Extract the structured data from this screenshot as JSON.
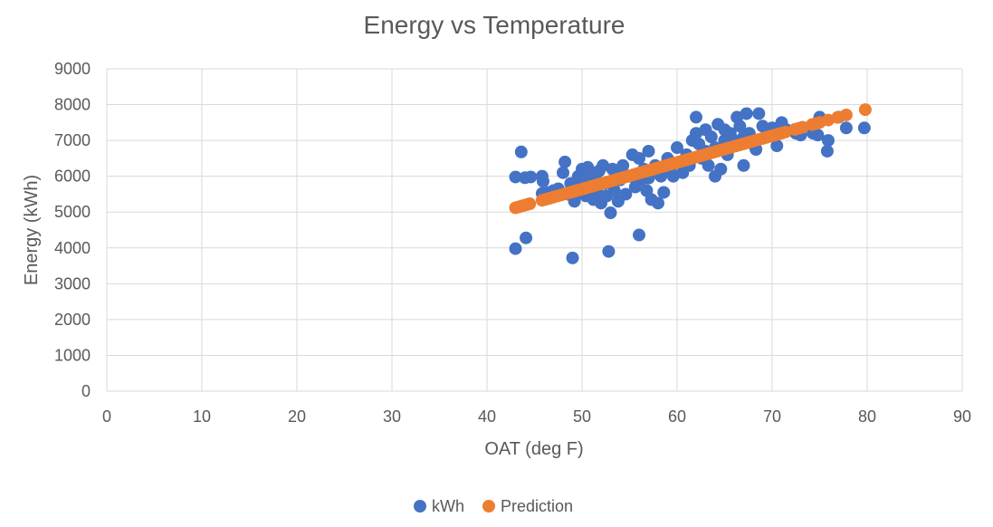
{
  "chart_data": {
    "type": "scatter",
    "title": "Energy vs Temperature",
    "xlabel": "OAT (deg F)",
    "ylabel": "Energy (kWh)",
    "xlim": [
      0,
      90
    ],
    "ylim": [
      0,
      9000
    ],
    "xticks": [
      0,
      10,
      20,
      30,
      40,
      50,
      60,
      70,
      80,
      90
    ],
    "yticks": [
      0,
      1000,
      2000,
      3000,
      4000,
      5000,
      6000,
      7000,
      8000,
      9000
    ],
    "grid": "vertical and horizontal",
    "legend_position": "bottom",
    "series": [
      {
        "name": "kWh",
        "color": "#4472c4",
        "points": [
          [
            43.0,
            3980
          ],
          [
            43.0,
            5980
          ],
          [
            43.6,
            6680
          ],
          [
            44.1,
            4280
          ],
          [
            44.0,
            5960
          ],
          [
            44.6,
            5980
          ],
          [
            45.8,
            6000
          ],
          [
            45.9,
            5860
          ],
          [
            45.8,
            5520
          ],
          [
            46.5,
            5550
          ],
          [
            47.0,
            5600
          ],
          [
            47.5,
            5650
          ],
          [
            48.0,
            6100
          ],
          [
            48.2,
            6400
          ],
          [
            48.5,
            5500
          ],
          [
            48.8,
            5800
          ],
          [
            49.0,
            3720
          ],
          [
            49.2,
            5300
          ],
          [
            49.4,
            5700
          ],
          [
            49.6,
            6000
          ],
          [
            49.8,
            5550
          ],
          [
            50.0,
            6200
          ],
          [
            50.2,
            5900
          ],
          [
            50.4,
            5450
          ],
          [
            50.6,
            6250
          ],
          [
            50.8,
            5650
          ],
          [
            51.0,
            6100
          ],
          [
            51.2,
            5350
          ],
          [
            51.4,
            6000
          ],
          [
            51.6,
            5550
          ],
          [
            51.8,
            6150
          ],
          [
            52.0,
            5250
          ],
          [
            52.2,
            6300
          ],
          [
            52.4,
            5800
          ],
          [
            52.6,
            5450
          ],
          [
            52.8,
            3900
          ],
          [
            53.0,
            4980
          ],
          [
            53.2,
            6200
          ],
          [
            53.4,
            5600
          ],
          [
            53.6,
            6100
          ],
          [
            53.8,
            5300
          ],
          [
            54.0,
            5900
          ],
          [
            54.3,
            6300
          ],
          [
            54.6,
            5500
          ],
          [
            55.0,
            6000
          ],
          [
            55.3,
            6600
          ],
          [
            55.6,
            5700
          ],
          [
            56.0,
            4360
          ],
          [
            56.0,
            6500
          ],
          [
            56.2,
            5900
          ],
          [
            56.5,
            6200
          ],
          [
            56.8,
            5600
          ],
          [
            57.0,
            6700
          ],
          [
            57.0,
            5950
          ],
          [
            57.3,
            5350
          ],
          [
            57.7,
            6300
          ],
          [
            58.0,
            5250
          ],
          [
            58.3,
            6000
          ],
          [
            58.6,
            5550
          ],
          [
            59.0,
            6500
          ],
          [
            59.3,
            6200
          ],
          [
            59.6,
            6000
          ],
          [
            60.0,
            6800
          ],
          [
            60.3,
            6400
          ],
          [
            60.6,
            6100
          ],
          [
            61.0,
            6600
          ],
          [
            61.3,
            6300
          ],
          [
            61.6,
            7000
          ],
          [
            62.0,
            7650
          ],
          [
            62.0,
            7200
          ],
          [
            62.3,
            6900
          ],
          [
            62.6,
            6500
          ],
          [
            63.0,
            6700
          ],
          [
            63.0,
            7300
          ],
          [
            63.3,
            6300
          ],
          [
            63.6,
            7100
          ],
          [
            64.0,
            6000
          ],
          [
            64.0,
            6800
          ],
          [
            64.3,
            7450
          ],
          [
            64.6,
            6200
          ],
          [
            65.0,
            7000
          ],
          [
            65.0,
            7300
          ],
          [
            65.3,
            6600
          ],
          [
            65.6,
            7200
          ],
          [
            66.0,
            7000
          ],
          [
            66.3,
            7650
          ],
          [
            66.6,
            7400
          ],
          [
            67.0,
            6300
          ],
          [
            67.0,
            7100
          ],
          [
            67.3,
            7750
          ],
          [
            67.6,
            7200
          ],
          [
            68.0,
            6900
          ],
          [
            68.3,
            6750
          ],
          [
            68.6,
            7750
          ],
          [
            69.0,
            7400
          ],
          [
            69.5,
            7100
          ],
          [
            70.0,
            7350
          ],
          [
            70.5,
            6850
          ],
          [
            71.0,
            7500
          ],
          [
            71.5,
            7300
          ],
          [
            72.5,
            7200
          ],
          [
            73.0,
            7150
          ],
          [
            74.3,
            7200
          ],
          [
            74.8,
            7150
          ],
          [
            75.0,
            7650
          ],
          [
            75.8,
            6700
          ],
          [
            75.9,
            7000
          ],
          [
            77.0,
            7650
          ],
          [
            77.8,
            7350
          ],
          [
            79.7,
            7350
          ]
        ]
      },
      {
        "name": "Prediction",
        "color": "#ed7d31",
        "line": {
          "x0": 43.0,
          "y0": 5120,
          "x1": 79.8,
          "y1": 7860
        },
        "points_x": [
          43.0,
          43.3,
          43.6,
          43.9,
          44.2,
          44.5,
          45.8,
          46.2,
          46.6,
          47.0,
          47.4,
          47.8,
          48.2,
          48.6,
          49.0,
          49.4,
          49.8,
          50.2,
          50.6,
          51.0,
          51.4,
          51.8,
          52.2,
          52.6,
          53.0,
          53.4,
          53.8,
          54.2,
          54.6,
          55.0,
          55.4,
          55.8,
          56.2,
          56.6,
          57.0,
          57.4,
          57.8,
          58.2,
          58.6,
          59.0,
          59.4,
          59.8,
          60.2,
          60.6,
          61.0,
          61.4,
          61.8,
          62.2,
          62.6,
          63.0,
          63.4,
          63.8,
          64.2,
          64.6,
          65.0,
          65.4,
          65.8,
          66.2,
          66.6,
          67.0,
          67.4,
          67.8,
          68.2,
          68.6,
          69.0,
          69.4,
          69.8,
          70.2,
          70.6,
          71.0,
          71.4,
          72.4,
          72.8,
          73.2,
          74.2,
          74.6,
          75.0,
          75.9,
          76.9,
          77.8,
          79.8
        ]
      }
    ]
  }
}
